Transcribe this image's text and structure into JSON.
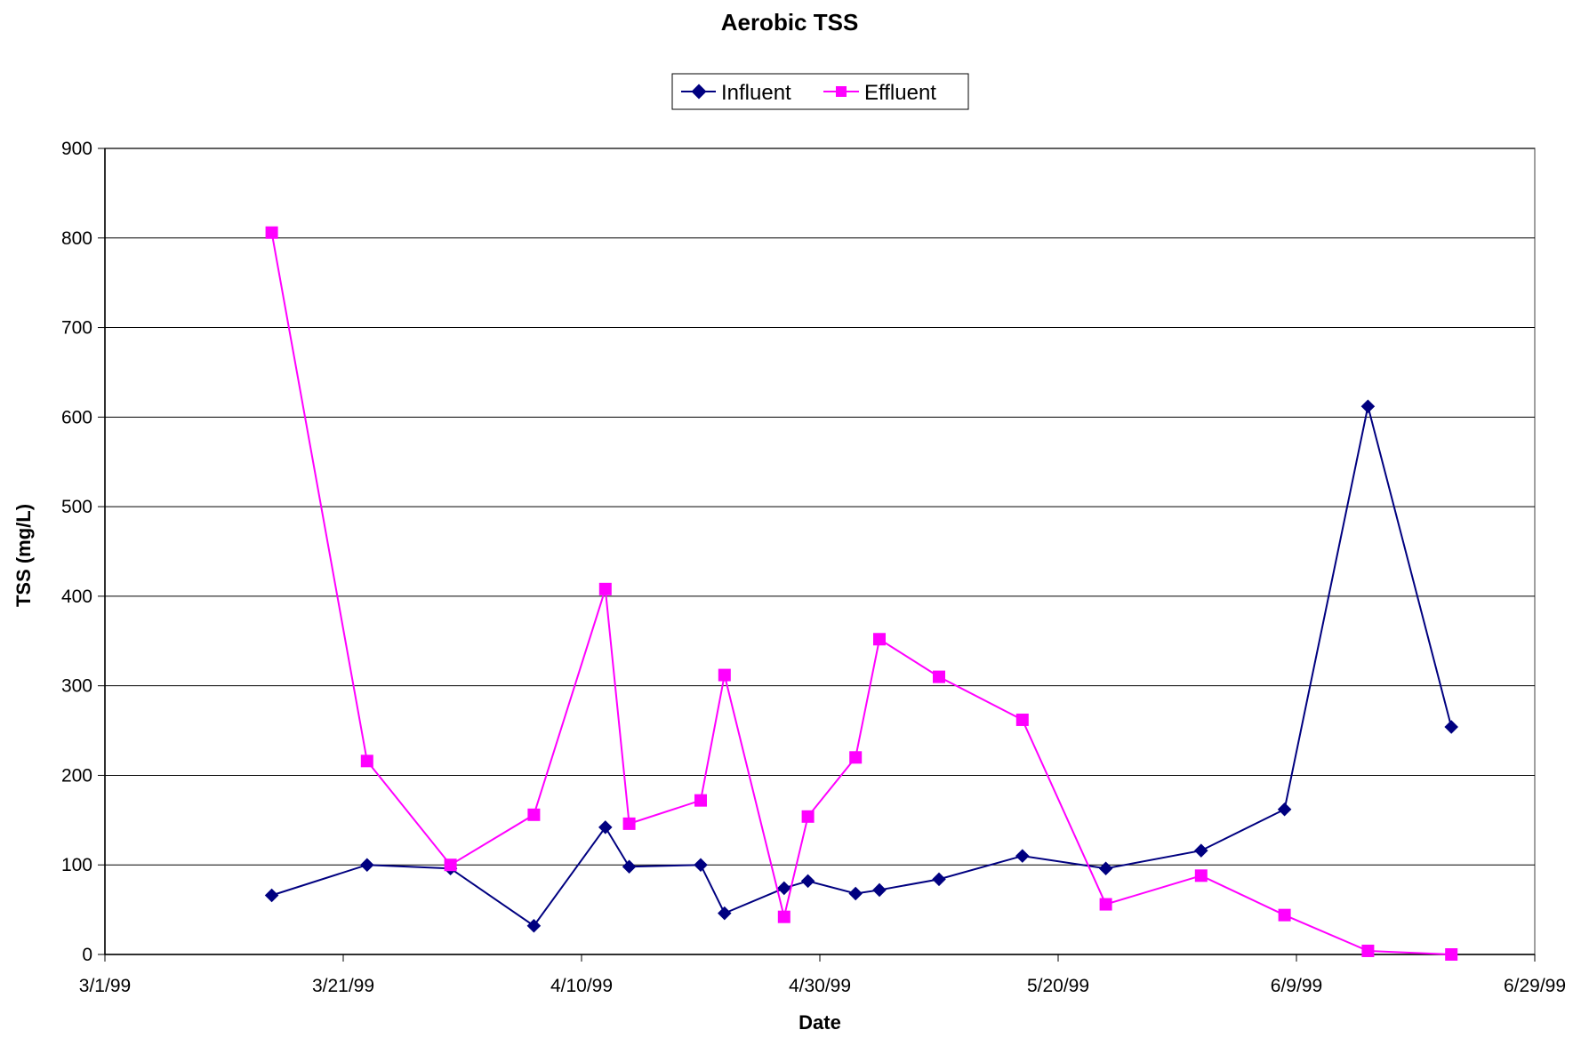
{
  "chart_data": {
    "type": "line",
    "title": "Aerobic TSS",
    "xlabel": "Date",
    "ylabel": "TSS (mg/L)",
    "xlim": [
      "3/1/99",
      "6/29/99"
    ],
    "ylim": [
      0,
      900
    ],
    "y_ticks": [
      0,
      100,
      200,
      300,
      400,
      500,
      600,
      700,
      800,
      900
    ],
    "x_ticks": [
      "3/1/99",
      "3/21/99",
      "4/10/99",
      "4/30/99",
      "5/20/99",
      "6/9/99",
      "6/29/99"
    ],
    "grid": "horizontal",
    "legend_position": "top-center",
    "series": [
      {
        "name": "Influent",
        "color": "#000080",
        "marker": "diamond",
        "points": [
          [
            "3/15/99",
            66
          ],
          [
            "3/23/99",
            100
          ],
          [
            "3/30/99",
            96
          ],
          [
            "4/6/99",
            32
          ],
          [
            "4/12/99",
            142
          ],
          [
            "4/14/99",
            98
          ],
          [
            "4/20/99",
            100
          ],
          [
            "4/22/99",
            46
          ],
          [
            "4/27/99",
            74
          ],
          [
            "4/29/99",
            82
          ],
          [
            "5/3/99",
            68
          ],
          [
            "5/5/99",
            72
          ],
          [
            "5/10/99",
            84
          ],
          [
            "5/17/99",
            110
          ],
          [
            "5/24/99",
            96
          ],
          [
            "6/1/99",
            116
          ],
          [
            "6/8/99",
            162
          ],
          [
            "6/15/99",
            612
          ],
          [
            "6/22/99",
            254
          ]
        ]
      },
      {
        "name": "Effluent",
        "color": "#ff00ff",
        "marker": "square",
        "points": [
          [
            "3/15/99",
            806
          ],
          [
            "3/23/99",
            216
          ],
          [
            "3/30/99",
            100
          ],
          [
            "4/6/99",
            156
          ],
          [
            "4/12/99",
            408
          ],
          [
            "4/14/99",
            146
          ],
          [
            "4/20/99",
            172
          ],
          [
            "4/22/99",
            312
          ],
          [
            "4/27/99",
            42
          ],
          [
            "4/29/99",
            154
          ],
          [
            "5/3/99",
            220
          ],
          [
            "5/5/99",
            352
          ],
          [
            "5/10/99",
            310
          ],
          [
            "5/17/99",
            262
          ],
          [
            "5/24/99",
            56
          ],
          [
            "6/1/99",
            88
          ],
          [
            "6/8/99",
            44
          ],
          [
            "6/15/99",
            4
          ],
          [
            "6/22/99",
            0
          ]
        ]
      }
    ]
  }
}
